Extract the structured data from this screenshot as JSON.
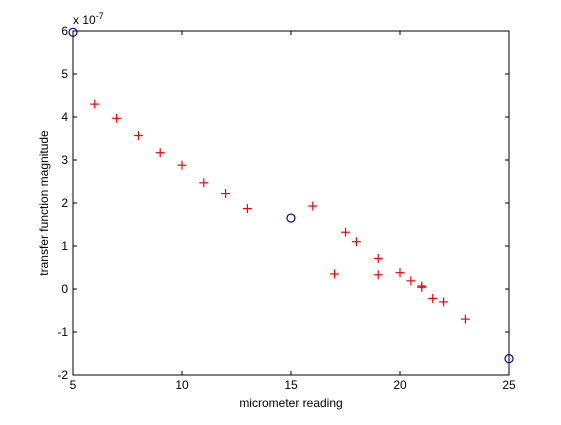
{
  "chart_data": {
    "type": "scatter",
    "title": "",
    "xlabel": "micrometer reading",
    "ylabel": "transfer function magnitude",
    "exponent_label": "x 10",
    "exponent_power": "-7",
    "xlim": [
      5,
      25
    ],
    "ylim": [
      -2,
      6
    ],
    "xticks": [
      5,
      10,
      15,
      20,
      25
    ],
    "yticks": [
      -2,
      -1,
      0,
      1,
      2,
      3,
      4,
      5,
      6
    ],
    "grid": false,
    "legend": "none",
    "series": [
      {
        "marker": "plus",
        "color": "#ff0000",
        "points": [
          [
            6,
            4.3
          ],
          [
            7,
            3.97
          ],
          [
            8,
            3.57
          ],
          [
            9,
            3.17
          ],
          [
            10,
            2.88
          ],
          [
            11,
            2.47
          ],
          [
            12,
            2.22
          ],
          [
            13,
            1.87
          ],
          [
            16,
            1.93
          ],
          [
            17,
            0.35
          ],
          [
            17.5,
            1.32
          ],
          [
            18,
            1.1
          ],
          [
            19,
            0.71
          ],
          [
            19,
            0.33
          ],
          [
            20,
            0.38
          ],
          [
            20.5,
            0.19
          ],
          [
            21,
            0.07
          ],
          [
            21,
            0.04
          ],
          [
            21.5,
            -0.22
          ],
          [
            22,
            -0.3
          ],
          [
            23,
            -0.7
          ]
        ]
      },
      {
        "marker": "circle",
        "color": "#0000b0",
        "points": [
          [
            5,
            5.97
          ],
          [
            15,
            1.65
          ],
          [
            25,
            -1.62
          ]
        ]
      }
    ]
  }
}
